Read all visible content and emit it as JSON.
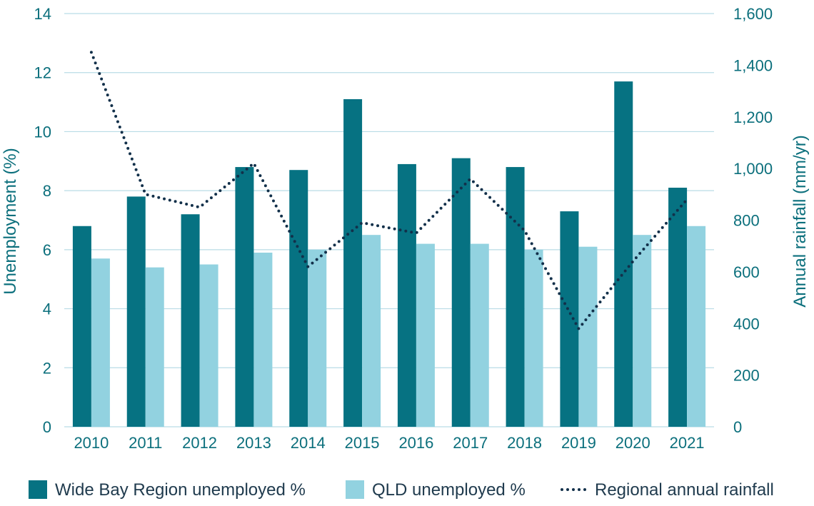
{
  "chart_data": {
    "type": "bar",
    "categories": [
      "2010",
      "2011",
      "2012",
      "2013",
      "2014",
      "2015",
      "2016",
      "2017",
      "2018",
      "2019",
      "2020",
      "2021"
    ],
    "series": [
      {
        "name": "Wide Bay Region unemployed %",
        "type": "bar",
        "axis": "left",
        "color": "#067282",
        "values": [
          6.8,
          7.8,
          7.2,
          8.8,
          8.7,
          11.1,
          8.9,
          9.1,
          8.8,
          7.3,
          11.7,
          8.1
        ]
      },
      {
        "name": "QLD unemployed %",
        "type": "bar",
        "axis": "left",
        "color": "#92d2e0",
        "values": [
          5.7,
          5.4,
          5.5,
          5.9,
          6.0,
          6.5,
          6.2,
          6.2,
          6.0,
          6.1,
          6.5,
          6.8
        ]
      },
      {
        "name": "Regional annual rainfall",
        "type": "line",
        "style": "dotted",
        "axis": "right",
        "color": "#12304a",
        "values": [
          1450,
          900,
          850,
          1020,
          620,
          790,
          750,
          960,
          760,
          380,
          640,
          880
        ]
      }
    ],
    "ylabel": "Unemployment (%)",
    "y2label": "Annual rainfall  (mm/yr)",
    "ylim": [
      0,
      14
    ],
    "y2lim": [
      0,
      1600
    ],
    "yticks": [
      "0",
      "2",
      "4",
      "6",
      "8",
      "10",
      "12",
      "14"
    ],
    "y2ticks": [
      "0",
      "200",
      "400",
      "600",
      "800",
      "1,000",
      "1,200",
      "1,400",
      "1,600"
    ],
    "grid": true,
    "legend_position": "bottom",
    "text_color": "#0b6f7c",
    "grid_color": "#b9dce6"
  }
}
